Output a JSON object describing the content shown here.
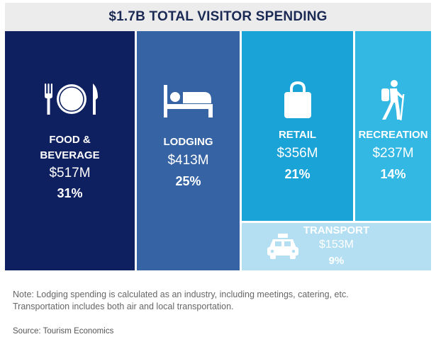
{
  "chart_data": {
    "type": "treemap",
    "title": "$1.7B TOTAL VISITOR SPENDING",
    "unit": "USD millions",
    "categories": [
      "FOOD & BEVERAGE",
      "LODGING",
      "RETAIL",
      "RECREATION",
      "TRANSPORT"
    ],
    "values": [
      517,
      413,
      356,
      237,
      153
    ],
    "value_labels": [
      "$517M",
      "$413M",
      "$356M",
      "$237M",
      "$153M"
    ],
    "shares": [
      "31%",
      "25%",
      "21%",
      "14%",
      "9%"
    ],
    "colors": [
      "#0f2060",
      "#3563a4",
      "#1aa3d6",
      "#33b8e4",
      "#b4dff2"
    ]
  },
  "tiles": {
    "food": {
      "label_line1": "FOOD &",
      "label_line2": "BEVERAGE",
      "value": "$517M",
      "share": "31%",
      "icon": "fork-plate-knife-icon"
    },
    "lodge": {
      "label": "LODGING",
      "value": "$413M",
      "share": "25%",
      "icon": "bed-icon"
    },
    "retail": {
      "label": "RETAIL",
      "value": "$356M",
      "share": "21%",
      "icon": "shopping-bag-icon"
    },
    "recr": {
      "label": "RECREATION",
      "value": "$237M",
      "share": "14%",
      "icon": "hiker-icon"
    },
    "trans": {
      "label": "TRANSPORT",
      "value": "$153M",
      "share": "9%",
      "icon": "taxi-icon"
    }
  },
  "footer": {
    "note_line1": "Note: Lodging spending is calculated as an industry, including meetings, catering, etc.",
    "note_line2": "Transportation includes both air and local transportation.",
    "source": "Source: Tourism Economics"
  }
}
